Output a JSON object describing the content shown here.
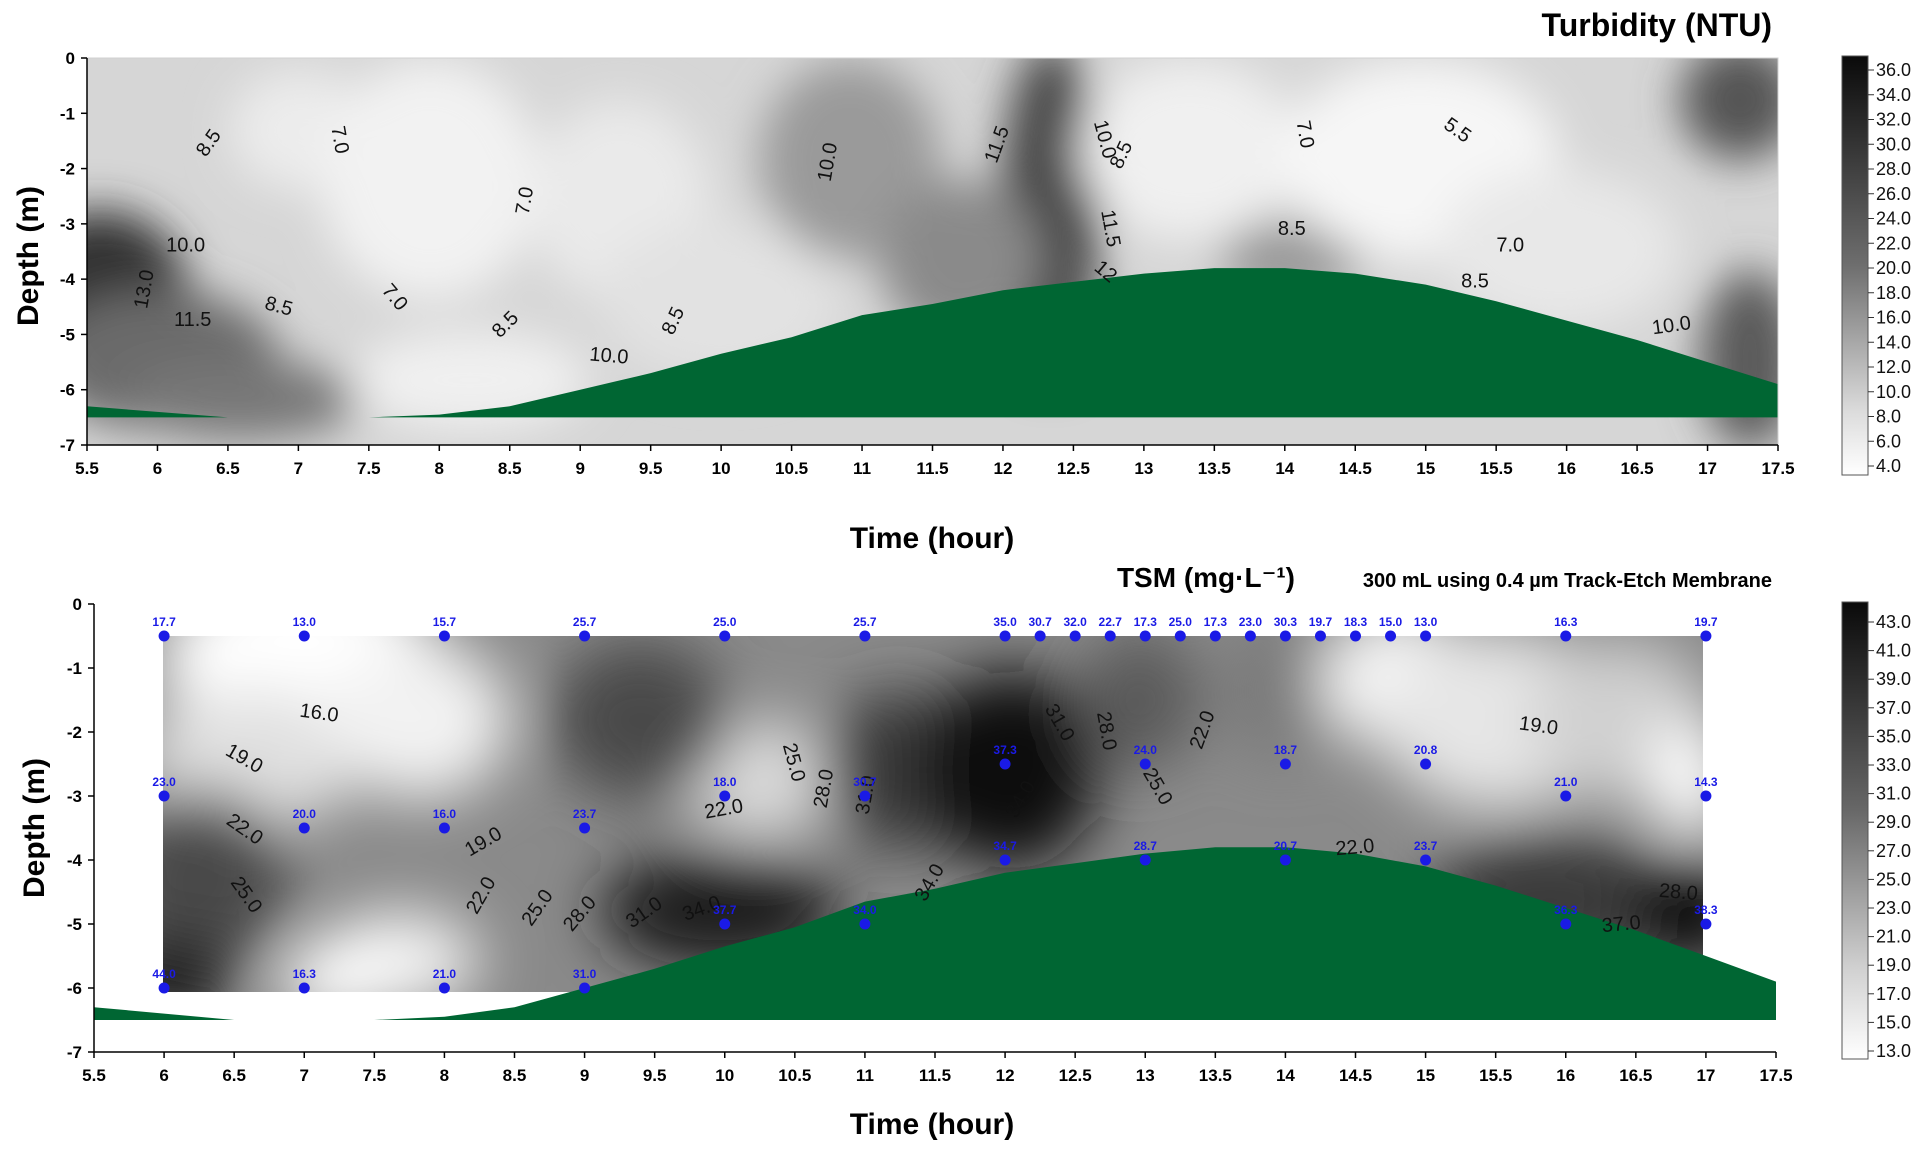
{
  "chart_data": [
    {
      "type": "heatmap",
      "title": "Turbidity (NTU)",
      "xlabel": "Time (hour)",
      "ylabel": "Depth (m)",
      "xlim": [
        5.5,
        17.5
      ],
      "ylim": [
        -7,
        0
      ],
      "x_ticks": [
        "5.5",
        "6",
        "6.5",
        "7",
        "7.5",
        "8",
        "8.5",
        "9",
        "9.5",
        "10",
        "10.5",
        "11",
        "11.5",
        "12",
        "12.5",
        "13",
        "13.5",
        "14",
        "14.5",
        "15",
        "15.5",
        "16",
        "16.5",
        "17",
        "17.5"
      ],
      "y_ticks": [
        "0",
        "-1",
        "-2",
        "-3",
        "-4",
        "-5",
        "-6",
        "-7"
      ],
      "colorbar_ticks": [
        "36.0",
        "34.0",
        "32.0",
        "30.0",
        "28.0",
        "26.0",
        "24.0",
        "22.0",
        "20.0",
        "18.0",
        "16.0",
        "14.0",
        "12.0",
        "10.0",
        "8.0",
        "6.0",
        "4.0"
      ],
      "colorbar_range": [
        4,
        37
      ],
      "seabed_color": "#006633",
      "seabed_profile": [
        [
          5.5,
          -6.3
        ],
        [
          6,
          -6.4
        ],
        [
          6.5,
          -6.5
        ],
        [
          7,
          -6.5
        ],
        [
          7.5,
          -6.5
        ],
        [
          8,
          -6.45
        ],
        [
          8.5,
          -6.3
        ],
        [
          9,
          -6.0
        ],
        [
          9.5,
          -5.7
        ],
        [
          10,
          -5.35
        ],
        [
          10.5,
          -5.05
        ],
        [
          11,
          -4.65
        ],
        [
          11.5,
          -4.45
        ],
        [
          12,
          -4.2
        ],
        [
          12.5,
          -4.05
        ],
        [
          13,
          -3.9
        ],
        [
          13.5,
          -3.8
        ],
        [
          14,
          -3.8
        ],
        [
          14.5,
          -3.9
        ],
        [
          15,
          -4.1
        ],
        [
          15.5,
          -4.4
        ],
        [
          16,
          -4.75
        ],
        [
          16.5,
          -5.1
        ],
        [
          17,
          -5.5
        ],
        [
          17.5,
          -5.9
        ]
      ],
      "contour_labels": [
        {
          "text": "8.5",
          "x": 6.4,
          "y": -1.6,
          "rot": -55
        },
        {
          "text": "7.0",
          "x": 7.25,
          "y": -1.5,
          "rot": 80
        },
        {
          "text": "7.0",
          "x": 8.65,
          "y": -2.6,
          "rot": -80
        },
        {
          "text": "10.0",
          "x": 10.8,
          "y": -1.9,
          "rot": -80
        },
        {
          "text": "11.5",
          "x": 12.0,
          "y": -1.6,
          "rot": -70
        },
        {
          "text": "10.0",
          "x": 12.68,
          "y": -1.5,
          "rot": 75
        },
        {
          "text": "8.5",
          "x": 12.88,
          "y": -1.8,
          "rot": -65
        },
        {
          "text": "11.5",
          "x": 12.72,
          "y": -3.1,
          "rot": 80
        },
        {
          "text": "7.0",
          "x": 14.1,
          "y": -1.4,
          "rot": 80
        },
        {
          "text": "5.5",
          "x": 15.2,
          "y": -1.4,
          "rot": 35
        },
        {
          "text": "10.0",
          "x": 6.2,
          "y": -3.5,
          "rot": 0
        },
        {
          "text": "8.5",
          "x": 14.05,
          "y": -3.2,
          "rot": 0
        },
        {
          "text": "7.0",
          "x": 15.6,
          "y": -3.5,
          "rot": 0
        },
        {
          "text": "13.0",
          "x": 5.95,
          "y": -4.2,
          "rot": -80
        },
        {
          "text": "11.5",
          "x": 6.25,
          "y": -4.85,
          "rot": 0
        },
        {
          "text": "8.5",
          "x": 6.85,
          "y": -4.6,
          "rot": 15
        },
        {
          "text": "7.0",
          "x": 7.65,
          "y": -4.4,
          "rot": 50
        },
        {
          "text": "8.5",
          "x": 8.5,
          "y": -4.9,
          "rot": -45
        },
        {
          "text": "8.5",
          "x": 9.7,
          "y": -4.8,
          "rot": -65
        },
        {
          "text": "10.0",
          "x": 9.2,
          "y": -5.5,
          "rot": 5
        },
        {
          "text": "8.5",
          "x": 15.35,
          "y": -4.15,
          "rot": 0
        },
        {
          "text": "10.0",
          "x": 16.75,
          "y": -4.95,
          "rot": -8
        },
        {
          "text": "12",
          "x": 12.7,
          "y": -3.95,
          "rot": 40
        }
      ]
    },
    {
      "type": "heatmap",
      "title": "TSM (mg·L⁻¹)",
      "subtitle": "300 mL using 0.4 µm Track-Etch Membrane",
      "xlabel": "Time (hour)",
      "ylabel": "Depth (m)",
      "xlim": [
        5.5,
        17.5
      ],
      "ylim": [
        -7,
        0
      ],
      "x_ticks": [
        "5.5",
        "6",
        "6.5",
        "7",
        "7.5",
        "8",
        "8.5",
        "9",
        "9.5",
        "10",
        "10.5",
        "11",
        "11.5",
        "12",
        "12.5",
        "13",
        "13.5",
        "14",
        "14.5",
        "15",
        "15.5",
        "16",
        "16.5",
        "17",
        "17.5"
      ],
      "y_ticks": [
        "0",
        "-1",
        "-2",
        "-3",
        "-4",
        "-5",
        "-6",
        "-7"
      ],
      "colorbar_ticks": [
        "43.0",
        "41.0",
        "39.0",
        "37.0",
        "35.0",
        "33.0",
        "31.0",
        "29.0",
        "27.0",
        "25.0",
        "23.0",
        "21.0",
        "19.0",
        "17.0",
        "15.0",
        "13.0"
      ],
      "colorbar_range": [
        13,
        44
      ],
      "seabed_color": "#006633",
      "point_color": "#1a1ae6",
      "seabed_profile": [
        [
          5.5,
          -6.3
        ],
        [
          6,
          -6.4
        ],
        [
          6.5,
          -6.5
        ],
        [
          7,
          -6.5
        ],
        [
          7.5,
          -6.5
        ],
        [
          8,
          -6.45
        ],
        [
          8.5,
          -6.3
        ],
        [
          9,
          -6.0
        ],
        [
          9.5,
          -5.7
        ],
        [
          10,
          -5.35
        ],
        [
          10.5,
          -5.05
        ],
        [
          11,
          -4.65
        ],
        [
          11.5,
          -4.45
        ],
        [
          12,
          -4.2
        ],
        [
          12.5,
          -4.05
        ],
        [
          13,
          -3.9
        ],
        [
          13.5,
          -3.8
        ],
        [
          14,
          -3.8
        ],
        [
          14.5,
          -3.9
        ],
        [
          15,
          -4.1
        ],
        [
          15.5,
          -4.4
        ],
        [
          16,
          -4.75
        ],
        [
          16.5,
          -5.1
        ],
        [
          17,
          -5.5
        ],
        [
          17.5,
          -5.9
        ]
      ],
      "points": [
        {
          "x": 6,
          "y": -0.5,
          "v": "17.7"
        },
        {
          "x": 7,
          "y": -0.5,
          "v": "13.0"
        },
        {
          "x": 8,
          "y": -0.5,
          "v": "15.7"
        },
        {
          "x": 9,
          "y": -0.5,
          "v": "25.7"
        },
        {
          "x": 10,
          "y": -0.5,
          "v": "25.0"
        },
        {
          "x": 11,
          "y": -0.5,
          "v": "25.7"
        },
        {
          "x": 12,
          "y": -0.5,
          "v": "35.0"
        },
        {
          "x": 12.25,
          "y": -0.5,
          "v": "30.7"
        },
        {
          "x": 12.5,
          "y": -0.5,
          "v": "32.0"
        },
        {
          "x": 12.75,
          "y": -0.5,
          "v": "22.7"
        },
        {
          "x": 13,
          "y": -0.5,
          "v": "17.3"
        },
        {
          "x": 13.25,
          "y": -0.5,
          "v": "25.0"
        },
        {
          "x": 13.5,
          "y": -0.5,
          "v": "17.3"
        },
        {
          "x": 13.75,
          "y": -0.5,
          "v": "23.0"
        },
        {
          "x": 14,
          "y": -0.5,
          "v": "30.3"
        },
        {
          "x": 14.25,
          "y": -0.5,
          "v": "19.7"
        },
        {
          "x": 14.5,
          "y": -0.5,
          "v": "18.3"
        },
        {
          "x": 14.75,
          "y": -0.5,
          "v": "15.0"
        },
        {
          "x": 15,
          "y": -0.5,
          "v": "13.0"
        },
        {
          "x": 16,
          "y": -0.5,
          "v": "16.3"
        },
        {
          "x": 17,
          "y": -0.5,
          "v": "19.7"
        },
        {
          "x": 12,
          "y": -2.5,
          "v": "37.3"
        },
        {
          "x": 13,
          "y": -2.5,
          "v": "24.0"
        },
        {
          "x": 14,
          "y": -2.5,
          "v": "18.7"
        },
        {
          "x": 15,
          "y": -2.5,
          "v": "20.8"
        },
        {
          "x": 6,
          "y": -3.0,
          "v": "23.0"
        },
        {
          "x": 10,
          "y": -3.0,
          "v": "18.0"
        },
        {
          "x": 11,
          "y": -3.0,
          "v": "30.7"
        },
        {
          "x": 16,
          "y": -3.0,
          "v": "21.0"
        },
        {
          "x": 17,
          "y": -3.0,
          "v": "14.3"
        },
        {
          "x": 7,
          "y": -3.5,
          "v": "20.0"
        },
        {
          "x": 8,
          "y": -3.5,
          "v": "16.0"
        },
        {
          "x": 9,
          "y": -3.5,
          "v": "23.7"
        },
        {
          "x": 12,
          "y": -4.0,
          "v": "34.7"
        },
        {
          "x": 13,
          "y": -4.0,
          "v": "28.7"
        },
        {
          "x": 14,
          "y": -4.0,
          "v": "20.7"
        },
        {
          "x": 15,
          "y": -4.0,
          "v": "23.7"
        },
        {
          "x": 10,
          "y": -5.0,
          "v": "37.7"
        },
        {
          "x": 11,
          "y": -5.0,
          "v": "34.0"
        },
        {
          "x": 16,
          "y": -5.0,
          "v": "36.3"
        },
        {
          "x": 17,
          "y": -5.0,
          "v": "38.3"
        },
        {
          "x": 6,
          "y": -6.0,
          "v": "44.0"
        },
        {
          "x": 7,
          "y": -6.0,
          "v": "16.3"
        },
        {
          "x": 8,
          "y": -6.0,
          "v": "21.0"
        },
        {
          "x": 9,
          "y": -6.0,
          "v": "31.0"
        }
      ],
      "contour_labels": [
        {
          "text": "16.0",
          "x": 7.1,
          "y": -1.8,
          "rot": 8
        },
        {
          "text": "19.0",
          "x": 6.55,
          "y": -2.5,
          "rot": 30
        },
        {
          "text": "22.0",
          "x": 6.55,
          "y": -3.6,
          "rot": 35
        },
        {
          "text": "25.0",
          "x": 6.55,
          "y": -4.6,
          "rot": 55
        },
        {
          "text": "19.0",
          "x": 8.3,
          "y": -3.8,
          "rot": -30
        },
        {
          "text": "22.0",
          "x": 8.3,
          "y": -4.6,
          "rot": -60
        },
        {
          "text": "25.0",
          "x": 8.7,
          "y": -4.8,
          "rot": -55
        },
        {
          "text": "28.0",
          "x": 9.0,
          "y": -4.9,
          "rot": -50
        },
        {
          "text": "31.0",
          "x": 9.45,
          "y": -4.9,
          "rot": -35
        },
        {
          "text": "34.0",
          "x": 9.85,
          "y": -4.85,
          "rot": -20
        },
        {
          "text": "22.0",
          "x": 10.0,
          "y": -3.3,
          "rot": -10
        },
        {
          "text": "25.0",
          "x": 10.45,
          "y": -2.5,
          "rot": 75
        },
        {
          "text": "28.0",
          "x": 10.75,
          "y": -2.9,
          "rot": -80
        },
        {
          "text": "31.0",
          "x": 11.05,
          "y": -3.0,
          "rot": -80
        },
        {
          "text": "31.0",
          "x": 12.35,
          "y": -1.9,
          "rot": 60
        },
        {
          "text": "28.0",
          "x": 12.68,
          "y": -2.0,
          "rot": 80
        },
        {
          "text": "34.0",
          "x": 12.15,
          "y": -3.1,
          "rot": -60
        },
        {
          "text": "25.0",
          "x": 13.05,
          "y": -2.9,
          "rot": 60
        },
        {
          "text": "22.0",
          "x": 13.45,
          "y": -2.0,
          "rot": -70
        },
        {
          "text": "19.0",
          "x": 15.8,
          "y": -2.0,
          "rot": 8
        },
        {
          "text": "34.0",
          "x": 11.5,
          "y": -4.4,
          "rot": -60
        },
        {
          "text": "22.0",
          "x": 14.5,
          "y": -3.9,
          "rot": -5
        },
        {
          "text": "28.0",
          "x": 16.8,
          "y": -4.6,
          "rot": 5
        },
        {
          "text": "37.0",
          "x": 16.4,
          "y": -5.1,
          "rot": -5
        }
      ]
    }
  ]
}
